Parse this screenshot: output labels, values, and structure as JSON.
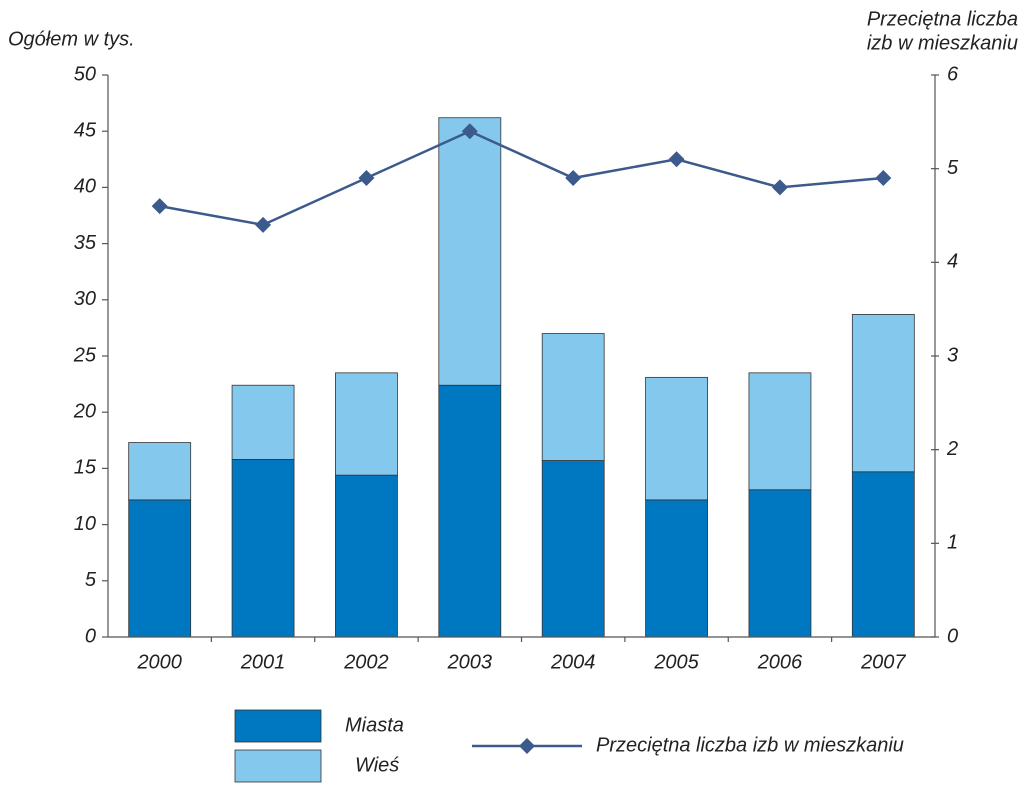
{
  "chart_data": {
    "type": "bar",
    "ylabel": "Ogółem w tys.",
    "y2label": [
      "Przeciętna liczba",
      "izb w mieszkaniu"
    ],
    "categories": [
      "2000",
      "2001",
      "2002",
      "2003",
      "2004",
      "2005",
      "2006",
      "2007"
    ],
    "series": [
      {
        "name": "Miasta",
        "type": "bar",
        "color": "#0078c1",
        "values": [
          12.2,
          15.8,
          14.4,
          22.4,
          15.7,
          12.2,
          13.1,
          14.7
        ]
      },
      {
        "name": "Wieś",
        "type": "bar",
        "color": "#85c8ee",
        "values": [
          5.1,
          6.6,
          9.1,
          23.8,
          11.3,
          10.9,
          10.4,
          14.0
        ]
      },
      {
        "name": "Przeciętna liczba izb w mieszkaniu",
        "type": "line",
        "axis": "y2",
        "color": "#3c5a8c",
        "values": [
          4.6,
          4.4,
          4.9,
          5.4,
          4.9,
          5.1,
          4.8,
          4.9
        ]
      }
    ],
    "stacked": true,
    "ylim": [
      0,
      50
    ],
    "yticks": [
      0,
      5,
      10,
      15,
      20,
      25,
      30,
      35,
      40,
      45,
      50
    ],
    "y2lim": [
      0,
      6
    ],
    "y2ticks": [
      0,
      1,
      2,
      3,
      4,
      5,
      6
    ],
    "grid": false
  }
}
